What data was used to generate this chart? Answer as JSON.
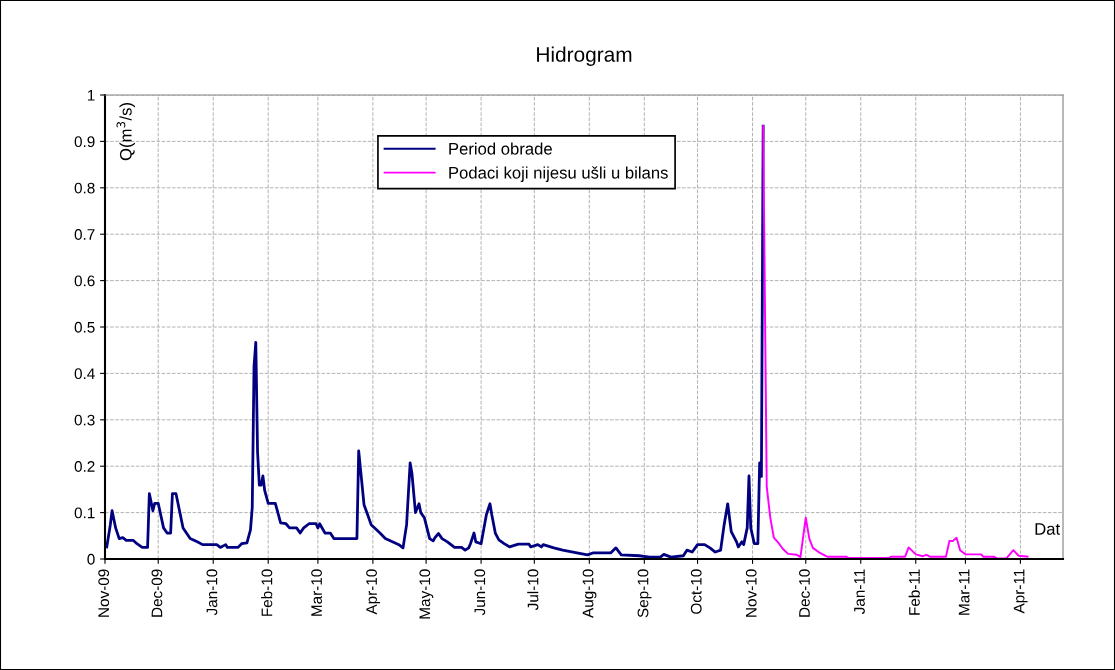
{
  "chart_data": {
    "type": "line",
    "title": "Hidrogram",
    "xlabel": "Dat",
    "ylabel": "Q(m$^{3}$/s)",
    "xlim": [
      "2009-11-01",
      "2011-04-25"
    ],
    "xticks": [
      {
        "value": "2009-11-01",
        "label": "Nov-09"
      },
      {
        "value": "2009-12-01",
        "label": "Dec-09"
      },
      {
        "value": "2010-01-01",
        "label": "Jan-10"
      },
      {
        "value": "2010-02-01",
        "label": "Feb-10"
      },
      {
        "value": "2010-03-01",
        "label": "Mar-10"
      },
      {
        "value": "2010-04-01",
        "label": "Apr-10"
      },
      {
        "value": "2010-05-01",
        "label": "May-10"
      },
      {
        "value": "2010-06-01",
        "label": "Jun-10"
      },
      {
        "value": "2010-07-01",
        "label": "Jul-10"
      },
      {
        "value": "2010-08-01",
        "label": "Aug-10"
      },
      {
        "value": "2010-09-01",
        "label": "Sep-10"
      },
      {
        "value": "2010-10-01",
        "label": "Oct-10"
      },
      {
        "value": "2010-11-01",
        "label": "Nov-10"
      },
      {
        "value": "2010-12-01",
        "label": "Dec-10"
      },
      {
        "value": "2011-01-01",
        "label": "Jan-11"
      },
      {
        "value": "2011-02-01",
        "label": "Feb-11"
      },
      {
        "value": "2011-03-01",
        "label": "Mar-11"
      },
      {
        "value": "2011-04-01",
        "label": "Apr-11"
      }
    ],
    "ylim": [
      0,
      1
    ],
    "yticks": [
      0,
      0.1,
      0.2,
      0.3,
      0.4,
      0.5,
      0.6,
      0.7,
      0.8,
      0.9,
      1
    ],
    "grid": true,
    "legend": "top",
    "marker": "none",
    "line_style": "solid",
    "series": [
      {
        "name": "Period obrade",
        "color": "#000080",
        "x": [
          "2009-11-02",
          "2009-11-04",
          "2009-11-05",
          "2009-11-07",
          "2009-11-09",
          "2009-11-11",
          "2009-11-13",
          "2009-11-17",
          "2009-11-19",
          "2009-11-22",
          "2009-11-25",
          "2009-11-26",
          "2009-11-28",
          "2009-11-29",
          "2009-12-01",
          "2009-12-04",
          "2009-12-06",
          "2009-12-08",
          "2009-12-09",
          "2009-12-11",
          "2009-12-13",
          "2009-12-15",
          "2009-12-19",
          "2009-12-23",
          "2009-12-26",
          "2010-01-03",
          "2010-01-05",
          "2010-01-08",
          "2010-01-09",
          "2010-01-15",
          "2010-01-17",
          "2010-01-20",
          "2010-01-22",
          "2010-01-23",
          "2010-01-24",
          "2010-01-25",
          "2010-01-26",
          "2010-01-27",
          "2010-01-28",
          "2010-01-29",
          "2010-01-30",
          "2010-02-01",
          "2010-02-05",
          "2010-02-08",
          "2010-02-11",
          "2010-02-13",
          "2010-02-17",
          "2010-02-19",
          "2010-02-21",
          "2010-02-24",
          "2010-02-28",
          "2010-03-01",
          "2010-03-02",
          "2010-03-05",
          "2010-03-08",
          "2010-03-10",
          "2010-03-23",
          "2010-03-24",
          "2010-03-26",
          "2010-03-27",
          "2010-03-29",
          "2010-03-31",
          "2010-04-02",
          "2010-04-05",
          "2010-04-08",
          "2010-04-12",
          "2010-04-16",
          "2010-04-18",
          "2010-04-20",
          "2010-04-22",
          "2010-04-23",
          "2010-04-25",
          "2010-04-27",
          "2010-04-28",
          "2010-04-30",
          "2010-05-03",
          "2010-05-05",
          "2010-05-06",
          "2010-05-08",
          "2010-05-10",
          "2010-05-13",
          "2010-05-17",
          "2010-05-21",
          "2010-05-23",
          "2010-05-25",
          "2010-05-26",
          "2010-05-28",
          "2010-05-29",
          "2010-06-01",
          "2010-06-04",
          "2010-06-06",
          "2010-06-07",
          "2010-06-09",
          "2010-06-11",
          "2010-06-14",
          "2010-06-17",
          "2010-06-22",
          "2010-06-28",
          "2010-06-29",
          "2010-07-03",
          "2010-07-05",
          "2010-07-06",
          "2010-07-12",
          "2010-07-17",
          "2010-07-25",
          "2010-07-31",
          "2010-08-03",
          "2010-08-13",
          "2010-08-16",
          "2010-08-19",
          "2010-08-29",
          "2010-09-04",
          "2010-09-10",
          "2010-09-12",
          "2010-09-16",
          "2010-09-23",
          "2010-09-25",
          "2010-09-28",
          "2010-10-01",
          "2010-10-05",
          "2010-10-08",
          "2010-10-11",
          "2010-10-14",
          "2010-10-16",
          "2010-10-18",
          "2010-10-20",
          "2010-10-23",
          "2010-10-24",
          "2010-10-26",
          "2010-10-27",
          "2010-10-29",
          "2010-10-30",
          "2010-10-31",
          "2010-11-02",
          "2010-11-04",
          "2010-11-05",
          "2010-11-06",
          "2010-11-07"
        ],
        "values": [
          0.026,
          0.074,
          0.104,
          0.067,
          0.044,
          0.046,
          0.04,
          0.04,
          0.033,
          0.025,
          0.025,
          0.141,
          0.104,
          0.12,
          0.12,
          0.067,
          0.056,
          0.056,
          0.141,
          0.141,
          0.104,
          0.067,
          0.044,
          0.037,
          0.031,
          0.031,
          0.025,
          0.031,
          0.025,
          0.025,
          0.033,
          0.035,
          0.063,
          0.111,
          0.415,
          0.467,
          0.23,
          0.159,
          0.159,
          0.179,
          0.148,
          0.12,
          0.12,
          0.078,
          0.076,
          0.067,
          0.067,
          0.056,
          0.067,
          0.076,
          0.076,
          0.067,
          0.076,
          0.056,
          0.056,
          0.044,
          0.044,
          0.233,
          0.156,
          0.117,
          0.096,
          0.074,
          0.067,
          0.056,
          0.044,
          0.037,
          0.03,
          0.024,
          0.074,
          0.207,
          0.185,
          0.1,
          0.119,
          0.1,
          0.089,
          0.044,
          0.039,
          0.046,
          0.055,
          0.044,
          0.037,
          0.025,
          0.025,
          0.019,
          0.024,
          0.033,
          0.056,
          0.037,
          0.033,
          0.096,
          0.119,
          0.096,
          0.056,
          0.041,
          0.033,
          0.026,
          0.032,
          0.032,
          0.026,
          0.031,
          0.026,
          0.031,
          0.024,
          0.019,
          0.013,
          0.009,
          0.013,
          0.013,
          0.024,
          0.009,
          0.007,
          0.004,
          0.004,
          0.01,
          0.004,
          0.007,
          0.019,
          0.015,
          0.031,
          0.031,
          0.024,
          0.015,
          0.019,
          0.074,
          0.119,
          0.059,
          0.037,
          0.026,
          0.037,
          0.031,
          0.067,
          0.179,
          0.067,
          0.033,
          0.033,
          0.207,
          0.178,
          0.933
        ]
      },
      {
        "name": "Podaci koji nijesu ušli u bilans",
        "color": "#ff00ff",
        "x": [
          "2010-11-07",
          "2010-11-09",
          "2010-11-11",
          "2010-11-13",
          "2010-11-16",
          "2010-11-18",
          "2010-11-21",
          "2010-11-26",
          "2010-11-28",
          "2010-12-01",
          "2010-12-03",
          "2010-12-05",
          "2010-12-09",
          "2010-12-13",
          "2010-12-24",
          "2010-12-25",
          "2011-01-17",
          "2011-01-18",
          "2011-01-26",
          "2011-01-28",
          "2011-02-01",
          "2011-02-05",
          "2011-02-07",
          "2011-02-09",
          "2011-02-18",
          "2011-02-20",
          "2011-02-22",
          "2011-02-24",
          "2011-02-26",
          "2011-03-01",
          "2011-03-10",
          "2011-03-11",
          "2011-03-17",
          "2011-03-19",
          "2011-03-24",
          "2011-03-26",
          "2011-03-28",
          "2011-03-31",
          "2011-04-05"
        ],
        "values": [
          0.933,
          0.156,
          0.089,
          0.046,
          0.033,
          0.022,
          0.011,
          0.009,
          0.004,
          0.089,
          0.044,
          0.024,
          0.013,
          0.005,
          0.005,
          0.002,
          0.002,
          0.005,
          0.005,
          0.025,
          0.01,
          0.006,
          0.009,
          0.005,
          0.005,
          0.039,
          0.039,
          0.046,
          0.019,
          0.01,
          0.01,
          0.005,
          0.005,
          0.001,
          0.001,
          0.01,
          0.019,
          0.007,
          0.005
        ]
      }
    ]
  }
}
